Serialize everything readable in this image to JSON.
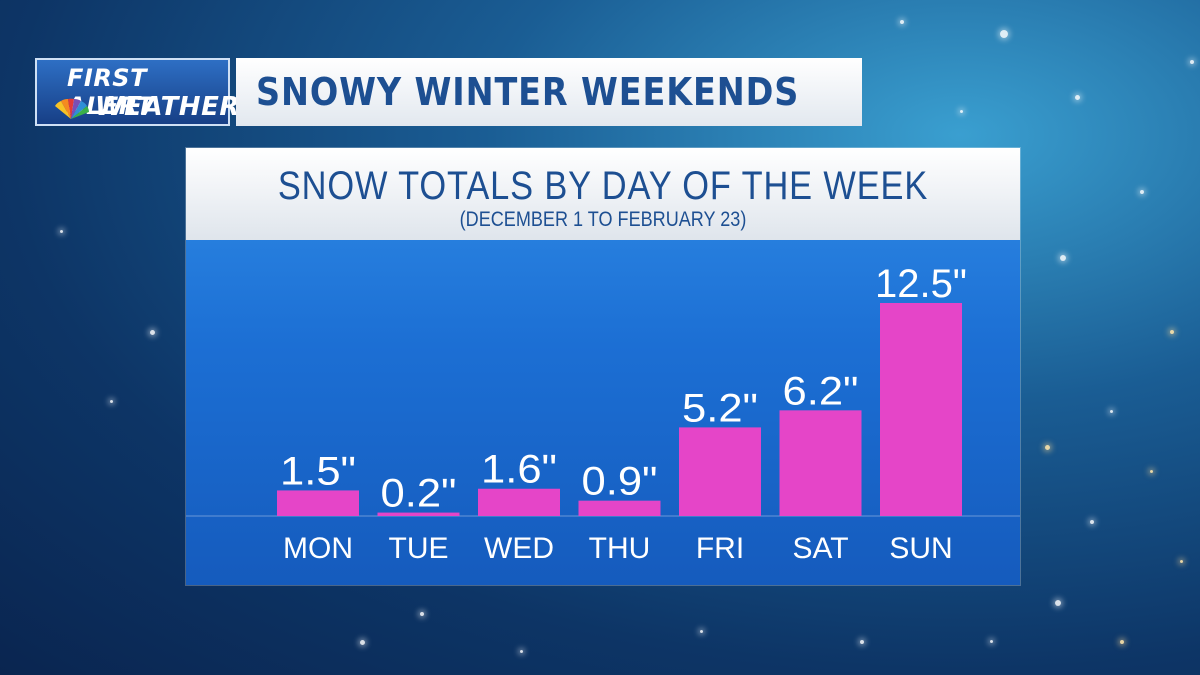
{
  "branding": {
    "logo_line1": "FIRST ALERT",
    "logo_line2": "WEATHER",
    "logo_icon": "peacock-icon"
  },
  "headline": "SNOWY WINTER WEEKENDS",
  "colors": {
    "bar": "#e545c8",
    "headline_text": "#1d4f92",
    "plot_background": "#1c6fd4"
  },
  "chart_data": {
    "type": "bar",
    "title": "SNOW TOTALS BY DAY OF THE WEEK",
    "subtitle": "(DECEMBER 1 TO FEBRUARY 23)",
    "categories": [
      "MON",
      "TUE",
      "WED",
      "THU",
      "FRI",
      "SAT",
      "SUN"
    ],
    "values": [
      1.5,
      0.2,
      1.6,
      0.9,
      5.2,
      6.2,
      12.5
    ],
    "value_labels": [
      "1.5\"",
      "0.2\"",
      "1.6\"",
      "0.9\"",
      "5.2\"",
      "6.2\"",
      "12.5\""
    ],
    "ylim": [
      0,
      12.5
    ],
    "grid": false,
    "legend": "none"
  }
}
